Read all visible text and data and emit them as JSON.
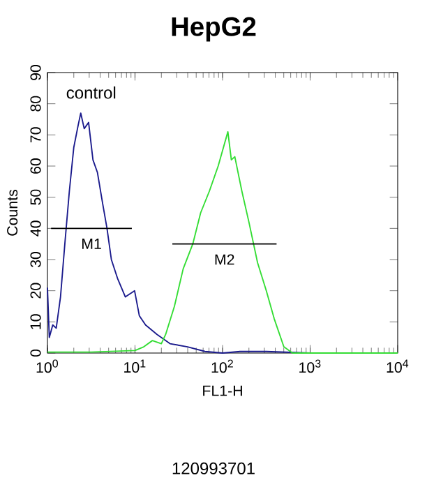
{
  "chart_data": {
    "type": "line",
    "title": "HepG2",
    "xlabel": "FL1-H",
    "ylabel": "Counts",
    "log": "x",
    "xlim": [
      1,
      10000
    ],
    "ylim": [
      0,
      90
    ],
    "xticks": [
      {
        "value": 1,
        "label": "10$^{0}$"
      },
      {
        "value": 10,
        "label": "10$^{1}$"
      },
      {
        "value": 100,
        "label": "10$^{2}$"
      },
      {
        "value": 1000,
        "label": "10$^{3}$"
      },
      {
        "value": 10000,
        "label": "10$^{4}$"
      }
    ],
    "yticks": [
      0,
      10,
      20,
      30,
      40,
      50,
      60,
      70,
      80,
      90
    ],
    "annotations": [
      "control",
      "120993701"
    ],
    "series": [
      {
        "color": "#1a1a8c",
        "x": [
          1,
          1.05,
          1.15,
          1.26,
          1.41,
          1.58,
          1.78,
          2,
          2.24,
          2.4,
          2.63,
          2.95,
          3.31,
          3.72,
          4.27,
          4.79,
          5.37,
          6.31,
          7.76,
          9.89,
          11.2,
          13.2,
          17.8,
          25.1,
          39.8,
          63.1,
          100,
          158,
          316,
          1000,
          10000
        ],
        "values": [
          21,
          5,
          9,
          8,
          18,
          35,
          52,
          66,
          73,
          77,
          72,
          74,
          62,
          58,
          48,
          40,
          30,
          24,
          18,
          20,
          12,
          9,
          6,
          3,
          2,
          0.5,
          0,
          0.5,
          0.5,
          0,
          0
        ]
      },
      {
        "color": "#33dd33",
        "x": [
          1,
          3.16,
          10,
          12.6,
          15.8,
          20,
          22.4,
          28.2,
          35.5,
          45.7,
          56.2,
          70.8,
          89.1,
          100,
          115,
          126,
          138,
          166,
          200,
          251,
          316,
          389,
          501,
          631,
          10000
        ],
        "values": [
          0.3,
          0.3,
          0.8,
          2,
          4,
          3,
          6,
          15,
          27,
          35,
          45,
          52,
          60,
          65,
          71,
          62,
          63,
          52,
          42,
          29,
          20,
          11,
          2,
          0,
          0
        ]
      },
      {
        "name": "M1",
        "color": "#000000",
        "x": [
          1.1,
          9.2
        ],
        "values": [
          40,
          40
        ]
      },
      {
        "name": "M2",
        "color": "#000000",
        "x": [
          26.7,
          414
        ],
        "values": [
          35,
          35
        ]
      }
    ]
  }
}
